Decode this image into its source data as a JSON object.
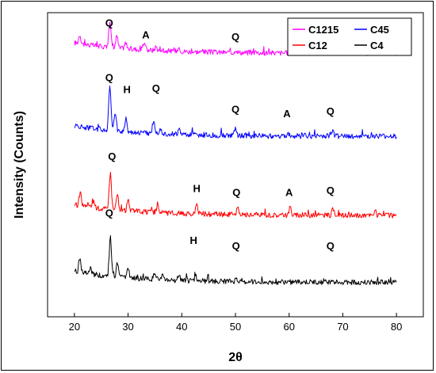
{
  "chart_data": {
    "type": "line",
    "title": "",
    "xlabel": "2θ",
    "ylabel": "Intensity (Counts)",
    "xlim": [
      15,
      85
    ],
    "xticks": [
      20,
      30,
      40,
      50,
      60,
      70,
      80
    ],
    "ylim": [
      0,
      100
    ],
    "legend": {
      "placement": "top-right",
      "columns": 2
    },
    "series": [
      {
        "name": "C1215",
        "color": "#ff00ff",
        "baseline": 86.6,
        "peaks": [
          [
            21.0,
            3.0
          ],
          [
            26.6,
            8.5
          ],
          [
            27.9,
            4.0
          ],
          [
            29.5,
            1.8
          ],
          [
            33.0,
            2.5
          ],
          [
            35.2,
            1.2
          ],
          [
            39.5,
            1.3
          ],
          [
            50.1,
            1.0
          ],
          [
            60.0,
            0.8
          ],
          [
            68.0,
            1.0
          ]
        ]
      },
      {
        "name": "C45",
        "color": "#0000ff",
        "baseline": 59.3,
        "peaks": [
          [
            26.6,
            15.0
          ],
          [
            27.6,
            6.0
          ],
          [
            29.6,
            4.5
          ],
          [
            34.8,
            4.5
          ],
          [
            36.0,
            2.0
          ],
          [
            39.5,
            1.5
          ],
          [
            50.0,
            2.0
          ],
          [
            59.8,
            1.2
          ],
          [
            68.1,
            1.5
          ]
        ]
      },
      {
        "name": "C12",
        "color": "#ff0000",
        "baseline": 33.3,
        "peaks": [
          [
            21.1,
            4.5
          ],
          [
            23.5,
            2.0
          ],
          [
            26.7,
            12.0
          ],
          [
            28.0,
            5.0
          ],
          [
            30.0,
            3.5
          ],
          [
            35.5,
            3.0
          ],
          [
            42.8,
            3.5
          ],
          [
            50.4,
            2.2
          ],
          [
            60.2,
            2.8
          ],
          [
            68.2,
            2.3
          ],
          [
            76.0,
            1.0
          ]
        ]
      },
      {
        "name": "C4",
        "color": "#000000",
        "baseline": 11.3,
        "peaks": [
          [
            21.0,
            4.5
          ],
          [
            23.0,
            1.8
          ],
          [
            26.7,
            13.0
          ],
          [
            28.0,
            4.5
          ],
          [
            30.0,
            3.0
          ],
          [
            35.0,
            2.5
          ],
          [
            36.5,
            1.5
          ],
          [
            39.5,
            1.5
          ],
          [
            42.6,
            1.5
          ],
          [
            50.2,
            1.0
          ],
          [
            68.0,
            1.0
          ]
        ]
      }
    ],
    "annotations": [
      {
        "text": "Q",
        "x": 26.5,
        "y": 95.4
      },
      {
        "text": "A",
        "x": 33.3,
        "y": 91.6
      },
      {
        "text": "Q",
        "x": 50.0,
        "y": 90.9
      },
      {
        "text": "Q",
        "x": 67.7,
        "y": 90.1
      },
      {
        "text": "Q",
        "x": 26.5,
        "y": 77.5
      },
      {
        "text": "H",
        "x": 29.8,
        "y": 73.6
      },
      {
        "text": "Q",
        "x": 35.2,
        "y": 74.0
      },
      {
        "text": "Q",
        "x": 50.0,
        "y": 67.1
      },
      {
        "text": "A",
        "x": 59.6,
        "y": 65.6
      },
      {
        "text": "Q",
        "x": 67.7,
        "y": 66.4
      },
      {
        "text": "Q",
        "x": 27.0,
        "y": 51.6
      },
      {
        "text": "H",
        "x": 42.8,
        "y": 41.0
      },
      {
        "text": "Q",
        "x": 50.2,
        "y": 39.7
      },
      {
        "text": "A",
        "x": 60.0,
        "y": 39.7
      },
      {
        "text": "Q",
        "x": 67.7,
        "y": 40.3
      },
      {
        "text": "Q",
        "x": 26.5,
        "y": 32.9
      },
      {
        "text": "H",
        "x": 42.2,
        "y": 23.9
      },
      {
        "text": "Q",
        "x": 50.1,
        "y": 22.2
      },
      {
        "text": "Q",
        "x": 67.7,
        "y": 22.2
      }
    ]
  }
}
